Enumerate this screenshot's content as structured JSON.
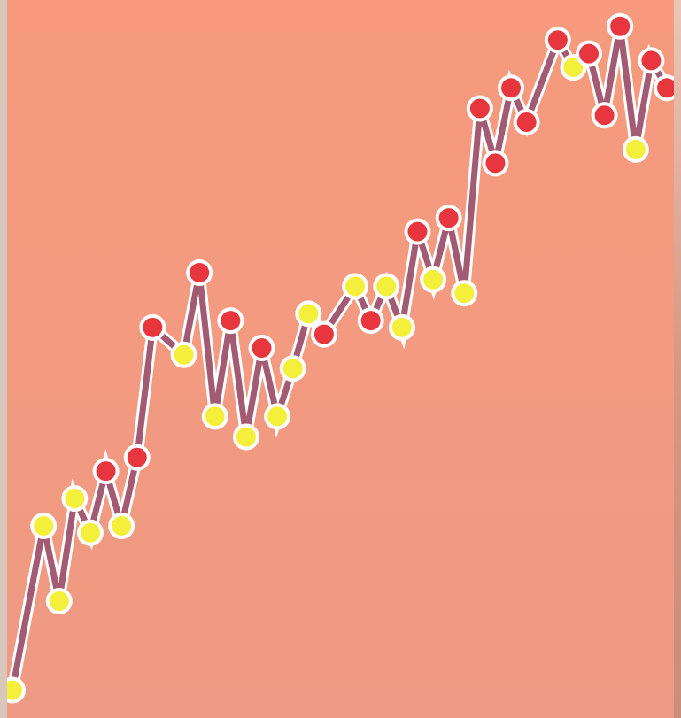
{
  "colors": {
    "background": "#f79a7e",
    "line": "#a35a73",
    "line_halo": "#ffffff",
    "marker_high": "#e8363f",
    "marker_low": "#f4ef3a"
  },
  "chart_data": {
    "type": "line",
    "title": "",
    "xlabel": "",
    "ylabel": "",
    "grid": false,
    "legend": "none",
    "xlim": [
      0,
      42
    ],
    "ylim": [
      0,
      100
    ],
    "series": [
      {
        "x": [
          0,
          2,
          3,
          4,
          5,
          6,
          7,
          8,
          9,
          11,
          12,
          13,
          14,
          15,
          16,
          17,
          18,
          19,
          20,
          22,
          23,
          24,
          25,
          26,
          27,
          28,
          29,
          30,
          31,
          32,
          33,
          35,
          36,
          37,
          38,
          39,
          40,
          41,
          42
        ],
        "values": [
          2,
          26,
          15,
          30,
          25,
          34,
          26,
          36,
          55,
          51,
          63,
          42,
          56,
          39,
          52,
          42,
          49,
          57,
          54,
          61,
          56,
          61,
          55,
          69,
          62,
          71,
          60,
          87,
          79,
          90,
          85,
          97,
          93,
          95,
          86,
          99,
          81,
          94,
          90
        ],
        "markers": [
          "low",
          "low",
          "low",
          "low",
          "low",
          "high",
          "low",
          "high",
          "high",
          "low",
          "high",
          "low",
          "high",
          "low",
          "high",
          "low",
          "low",
          "low",
          "high",
          "low",
          "high",
          "low",
          "low",
          "high",
          "low",
          "high",
          "low",
          "high",
          "high",
          "high",
          "high",
          "high",
          "low",
          "high",
          "high",
          "high",
          "low",
          "high",
          "high"
        ]
      }
    ]
  }
}
